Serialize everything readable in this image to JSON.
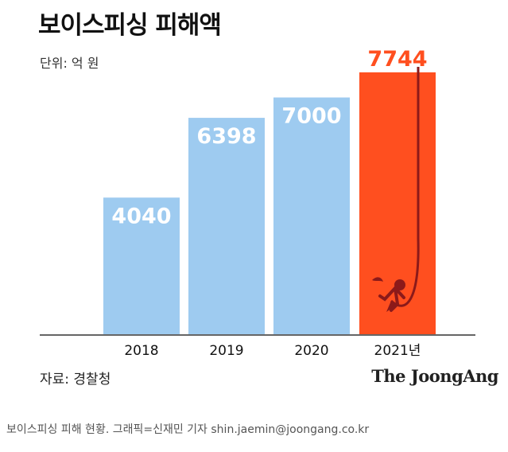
{
  "chart_data": {
    "type": "bar",
    "title": "보이스피싱 피해액",
    "unit_label": "단위: 억 원",
    "categories": [
      "2018",
      "2019",
      "2020",
      "2021년"
    ],
    "values": [
      4040,
      6398,
      7000,
      7744
    ],
    "value_labels": [
      "4040",
      "6398",
      "7000",
      "7744"
    ],
    "highlight_index": 3,
    "ylim": [
      0,
      8000
    ]
  },
  "colors": {
    "bar": "#9ecbf0",
    "highlight_bar": "#ff4f1f",
    "highlight_label": "#ff4f1f",
    "bar_label": "#ffffff",
    "hook": "#8b1a1a",
    "axis": "#333333"
  },
  "footer": {
    "source": "자료: 경찰청",
    "brand": "The JoongAng"
  },
  "caption": "보이스피싱 피해 현황. 그래픽=신재민 기자 shin.jaemin@joongang.co.kr"
}
